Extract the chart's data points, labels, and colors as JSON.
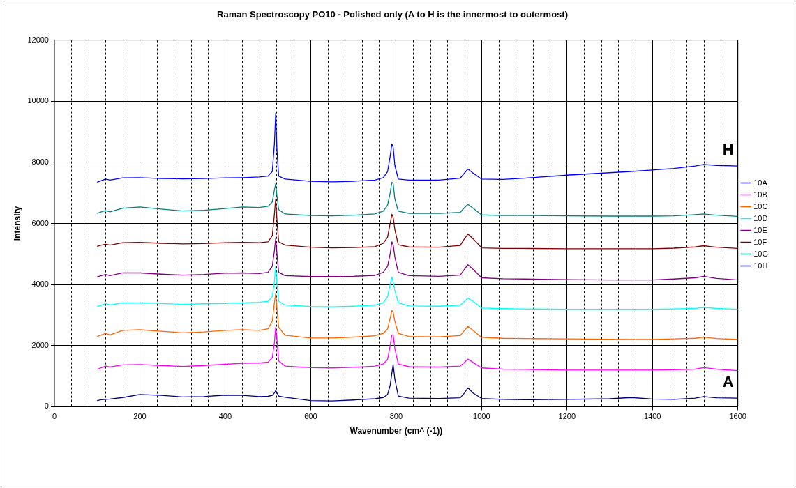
{
  "chart_data": {
    "type": "line",
    "title": "Raman Spectroscopy PO10 - Polished only (A to H is the innermost to outermost)",
    "xlabel": "Wavenumber (cm^ (-1))",
    "ylabel": "Intensity",
    "x": [
      100,
      110,
      120,
      130,
      160,
      200,
      250,
      300,
      350,
      400,
      440,
      480,
      500,
      510,
      515,
      518,
      521,
      525,
      540,
      600,
      650,
      700,
      750,
      770,
      780,
      786,
      790,
      793,
      797,
      805,
      830,
      900,
      950,
      960,
      968,
      980,
      1000,
      1050,
      1100,
      1200,
      1300,
      1350,
      1400,
      1450,
      1500,
      1520,
      1550,
      1600
    ],
    "series": [
      {
        "name": "10A",
        "color": "#000080",
        "values": [
          200,
          230,
          240,
          250,
          300,
          400,
          370,
          320,
          330,
          380,
          370,
          330,
          340,
          370,
          450,
          530,
          450,
          350,
          310,
          200,
          190,
          220,
          260,
          300,
          400,
          700,
          1100,
          1380,
          900,
          350,
          280,
          270,
          290,
          450,
          620,
          450,
          270,
          240,
          230,
          240,
          260,
          300,
          250,
          240,
          280,
          330,
          290,
          280
        ]
      },
      {
        "name": "10B",
        "color": "#ff00ff",
        "values": [
          1220,
          1280,
          1330,
          1300,
          1370,
          1380,
          1350,
          1320,
          1350,
          1390,
          1420,
          1430,
          1460,
          1600,
          2100,
          2600,
          2200,
          1500,
          1330,
          1280,
          1270,
          1290,
          1330,
          1400,
          1550,
          2000,
          2350,
          2350,
          1900,
          1400,
          1310,
          1300,
          1330,
          1450,
          1560,
          1450,
          1270,
          1230,
          1220,
          1200,
          1200,
          1200,
          1200,
          1210,
          1230,
          1280,
          1230,
          1180
        ]
      },
      {
        "name": "10C",
        "color": "#ff6600",
        "values": [
          2300,
          2350,
          2400,
          2350,
          2500,
          2520,
          2470,
          2420,
          2450,
          2500,
          2520,
          2500,
          2550,
          2800,
          3400,
          3700,
          3200,
          2600,
          2340,
          2250,
          2250,
          2280,
          2320,
          2400,
          2550,
          2900,
          3150,
          3100,
          2800,
          2400,
          2300,
          2290,
          2330,
          2500,
          2630,
          2500,
          2270,
          2240,
          2230,
          2220,
          2210,
          2200,
          2200,
          2220,
          2240,
          2280,
          2230,
          2200
        ]
      },
      {
        "name": "10D",
        "color": "#00ffff",
        "values": [
          3280,
          3320,
          3380,
          3330,
          3400,
          3400,
          3380,
          3350,
          3370,
          3380,
          3400,
          3420,
          3450,
          3600,
          4100,
          4600,
          4000,
          3450,
          3330,
          3280,
          3270,
          3290,
          3320,
          3400,
          3600,
          4000,
          4250,
          4100,
          3800,
          3400,
          3300,
          3290,
          3320,
          3450,
          3560,
          3450,
          3230,
          3210,
          3200,
          3190,
          3190,
          3190,
          3190,
          3200,
          3220,
          3250,
          3220,
          3190
        ]
      },
      {
        "name": "10E",
        "color": "#800080",
        "values": [
          4250,
          4290,
          4330,
          4290,
          4380,
          4380,
          4340,
          4310,
          4330,
          4370,
          4380,
          4360,
          4400,
          4600,
          5100,
          5500,
          5000,
          4400,
          4290,
          4260,
          4260,
          4270,
          4300,
          4400,
          4600,
          5000,
          5400,
          5300,
          4900,
          4400,
          4290,
          4270,
          4310,
          4500,
          4650,
          4500,
          4220,
          4190,
          4180,
          4160,
          4150,
          4150,
          4150,
          4180,
          4220,
          4270,
          4200,
          4150
        ]
      },
      {
        "name": "10F",
        "color": "#800000",
        "values": [
          5250,
          5290,
          5320,
          5290,
          5370,
          5380,
          5350,
          5330,
          5340,
          5370,
          5380,
          5370,
          5400,
          5600,
          6300,
          6800,
          6100,
          5400,
          5290,
          5220,
          5200,
          5210,
          5240,
          5350,
          5550,
          6000,
          6300,
          6200,
          5800,
          5300,
          5230,
          5220,
          5280,
          5500,
          5650,
          5500,
          5200,
          5180,
          5180,
          5170,
          5170,
          5170,
          5170,
          5190,
          5230,
          5270,
          5220,
          5180
        ]
      },
      {
        "name": "10G",
        "color": "#008080",
        "values": [
          6330,
          6380,
          6420,
          6380,
          6500,
          6540,
          6470,
          6410,
          6430,
          6490,
          6540,
          6520,
          6560,
          6700,
          7100,
          7300,
          6900,
          6450,
          6310,
          6260,
          6250,
          6270,
          6310,
          6400,
          6600,
          7000,
          7350,
          7300,
          6800,
          6400,
          6330,
          6330,
          6360,
          6520,
          6620,
          6500,
          6280,
          6260,
          6260,
          6250,
          6240,
          6240,
          6240,
          6250,
          6290,
          6310,
          6270,
          6230
        ]
      },
      {
        "name": "10H",
        "color": "#0000ff",
        "values": [
          7350,
          7400,
          7450,
          7420,
          7490,
          7500,
          7470,
          7460,
          7470,
          7490,
          7500,
          7520,
          7550,
          7700,
          8600,
          9600,
          8400,
          7550,
          7450,
          7380,
          7360,
          7380,
          7420,
          7500,
          7700,
          8200,
          8600,
          8500,
          7900,
          7450,
          7420,
          7420,
          7480,
          7650,
          7780,
          7650,
          7450,
          7440,
          7480,
          7580,
          7660,
          7700,
          7750,
          7800,
          7880,
          7930,
          7900,
          7880
        ]
      }
    ],
    "xlim": [
      0,
      1600
    ],
    "xticks": [
      0,
      {
        "value": 40,
        "label": null
      },
      {
        "value": 80,
        "label": null
      },
      {
        "value": 120,
        "label": null
      },
      {
        "value": 160,
        "label": null
      },
      200,
      {
        "value": 240,
        "label": null
      },
      {
        "value": 280,
        "label": null
      },
      {
        "value": 320,
        "label": null
      },
      {
        "value": 360,
        "label": null
      },
      400,
      {
        "value": 440,
        "label": null
      },
      {
        "value": 480,
        "label": null
      },
      {
        "value": 520,
        "label": null
      },
      {
        "value": 560,
        "label": null
      },
      600,
      {
        "value": 640,
        "label": null
      },
      {
        "value": 680,
        "label": null
      },
      {
        "value": 720,
        "label": null
      },
      {
        "value": 760,
        "label": null
      },
      800,
      {
        "value": 840,
        "label": null
      },
      {
        "value": 880,
        "label": null
      },
      {
        "value": 920,
        "label": null
      },
      {
        "value": 960,
        "label": null
      },
      1000,
      {
        "value": 1040,
        "label": null
      },
      {
        "value": 1080,
        "label": null
      },
      {
        "value": 1120,
        "label": null
      },
      {
        "value": 1160,
        "label": null
      },
      1200,
      {
        "value": 1240,
        "label": null
      },
      {
        "value": 1280,
        "label": null
      },
      {
        "value": 1320,
        "label": null
      },
      {
        "value": 1360,
        "label": null
      },
      1400,
      {
        "value": 1440,
        "label": null
      },
      {
        "value": 1480,
        "label": null
      },
      {
        "value": 1520,
        "label": null
      },
      {
        "value": 1560,
        "label": null
      },
      1600
    ],
    "ylim": [
      0,
      12000
    ],
    "yticks": [
      0,
      2000,
      4000,
      6000,
      8000,
      10000,
      12000
    ],
    "grid": true,
    "legend": "right",
    "marker": "none",
    "line_style": "solid",
    "annotations": [
      "H",
      "A"
    ]
  }
}
